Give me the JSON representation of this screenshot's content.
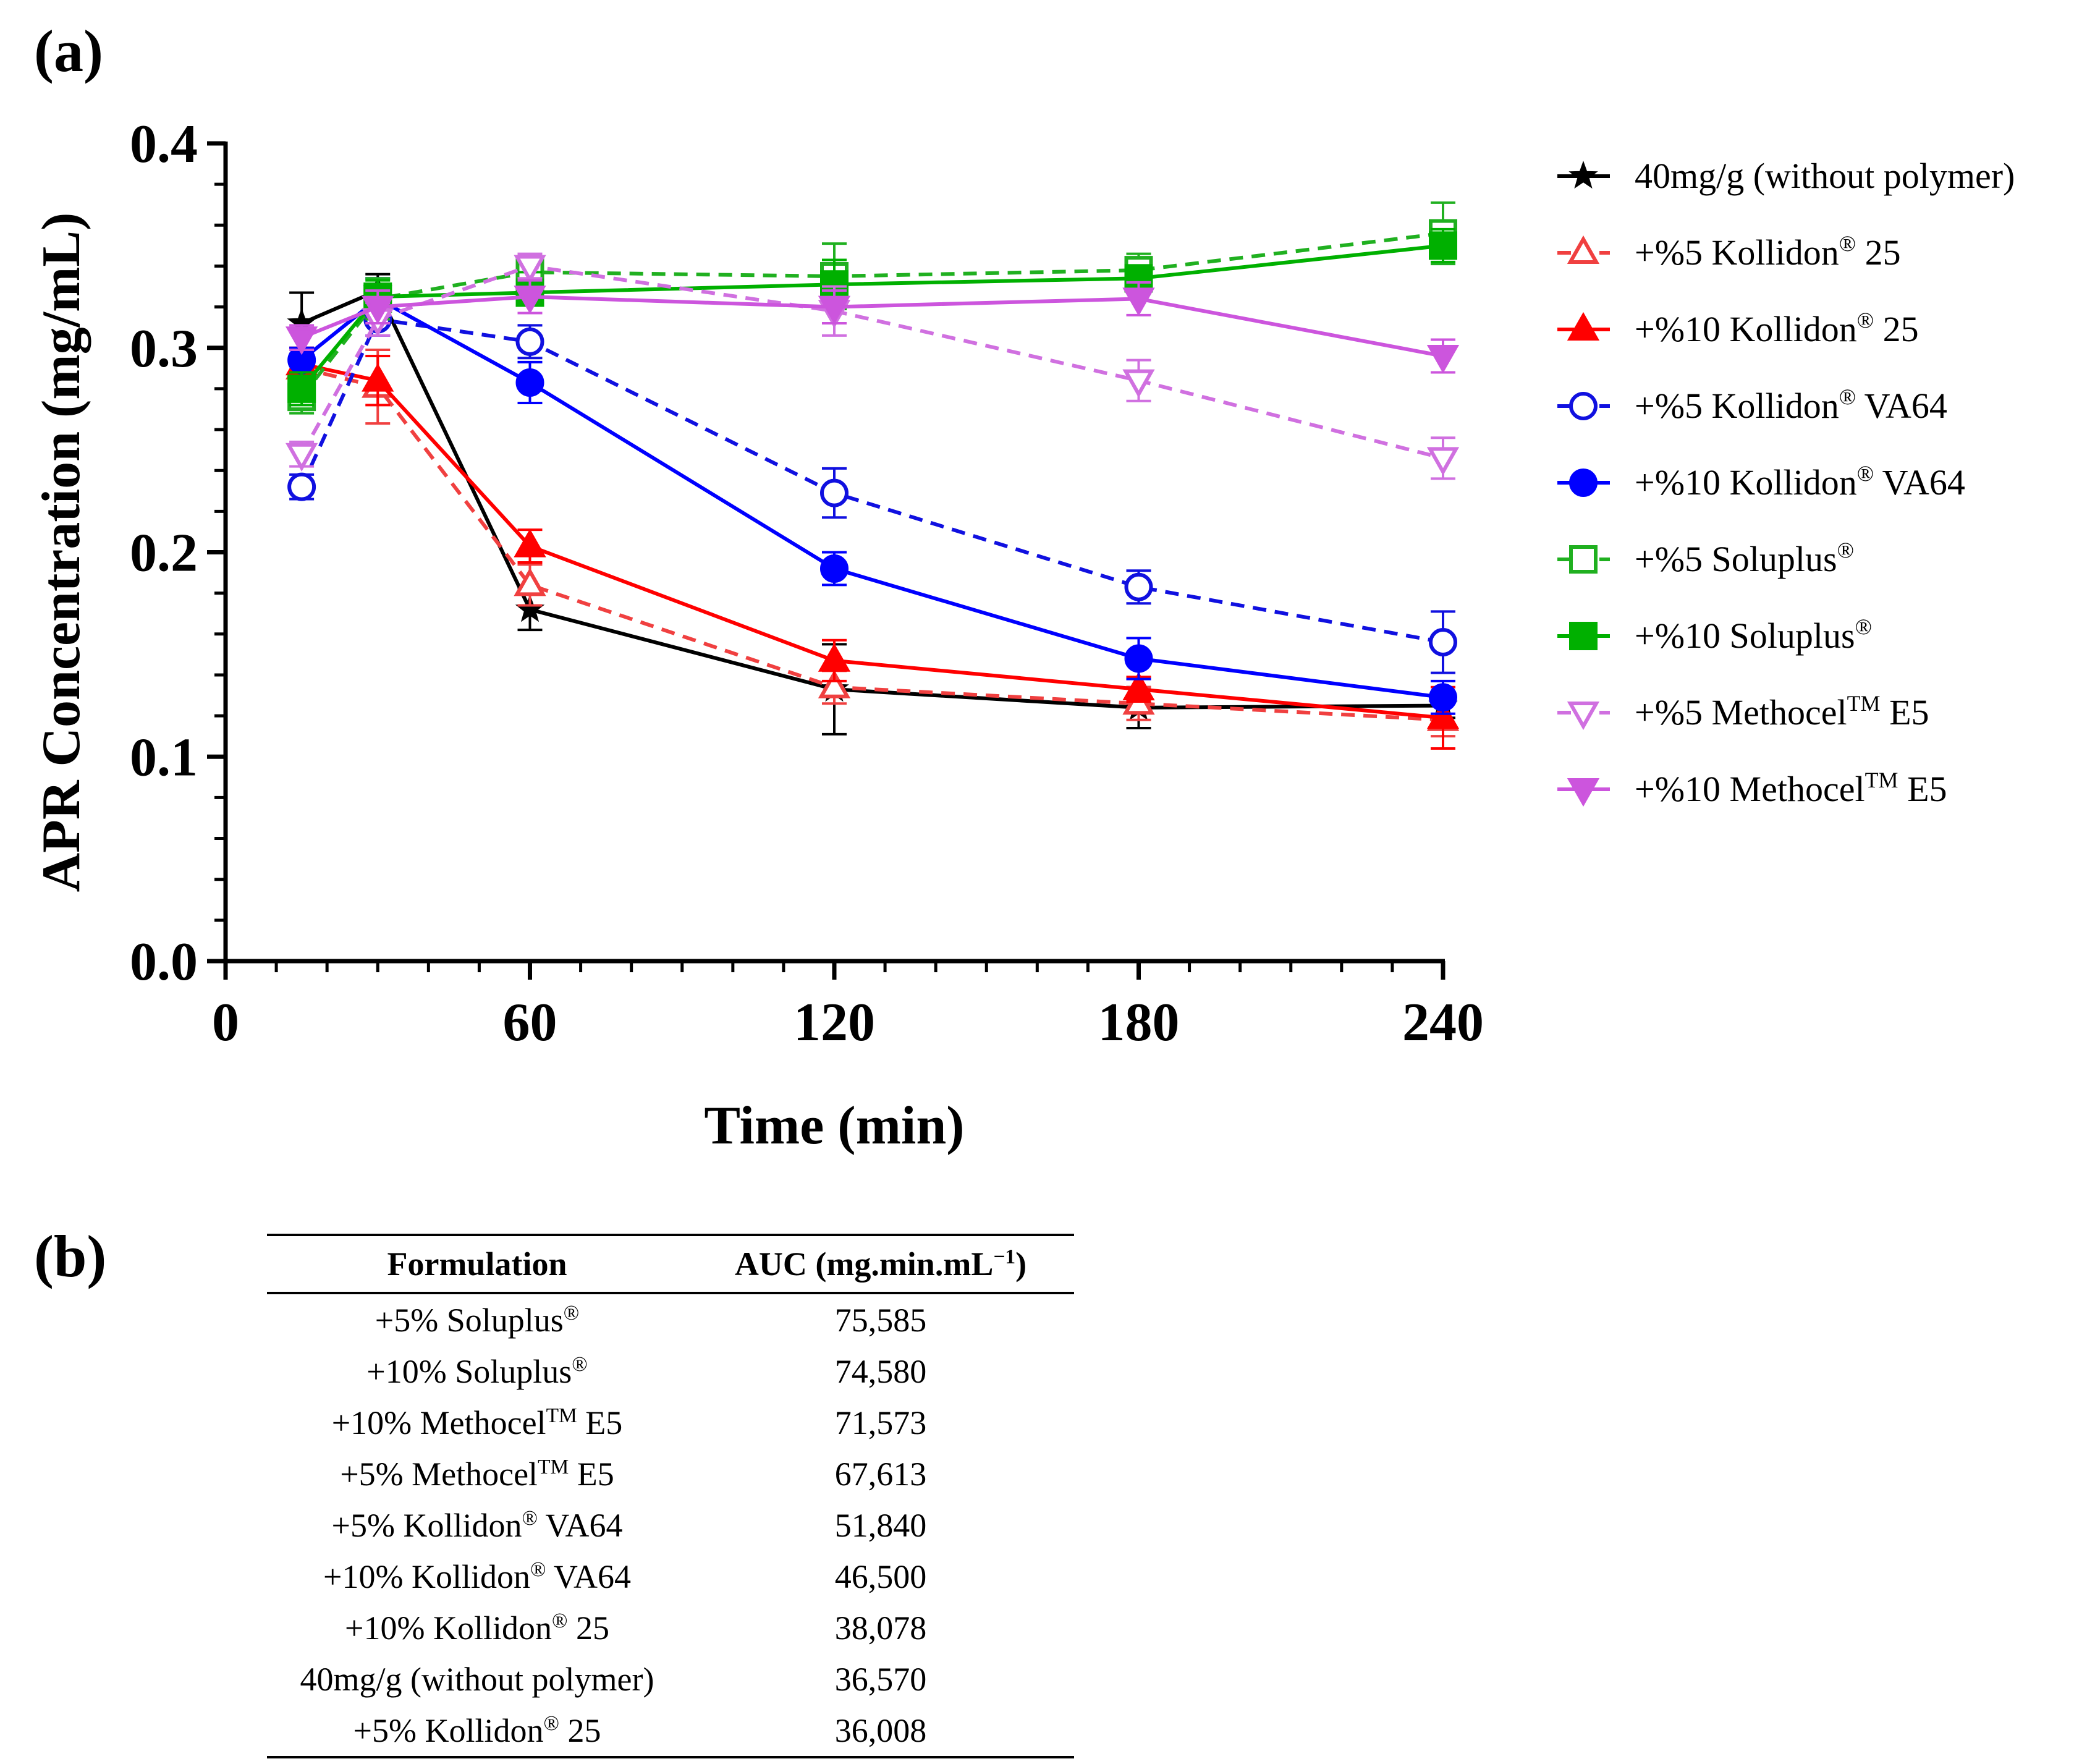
{
  "panel_a_label": "(a)",
  "panel_b_label": "(b)",
  "chart_data": {
    "type": "line",
    "xlabel": "Time (min)",
    "ylabel": "APR Concentration (mg/mL)",
    "xlim": [
      0,
      240
    ],
    "ylim": [
      0.0,
      0.4
    ],
    "xticks": [
      0,
      60,
      120,
      180,
      240
    ],
    "xtick_labels": [
      "0",
      "60",
      "120",
      "180",
      "240"
    ],
    "yticks": [
      0.0,
      0.1,
      0.2,
      0.3,
      0.4
    ],
    "ytick_labels": [
      "0.0",
      "0.1",
      "0.2",
      "0.3",
      "0.4"
    ],
    "legend_position": "right",
    "x": [
      15,
      30,
      60,
      120,
      180,
      240
    ],
    "series": [
      {
        "name": "40mg/g (without polymer)",
        "label_main": "40mg/g (without polymer)",
        "label_sup": "",
        "label_tail": "",
        "color": "#000000",
        "dashed": false,
        "marker": "star",
        "filled": true,
        "values": [
          0.312,
          0.328,
          0.172,
          0.133,
          0.124,
          0.125
        ],
        "errors": [
          0.015,
          0.008,
          0.01,
          0.022,
          0.01,
          0.006
        ]
      },
      {
        "name": "+%5 Kollidon® 25",
        "label_main": "+%5 Kollidon",
        "label_sup": "®",
        "label_tail": " 25",
        "color": "#f04040",
        "dashed": true,
        "marker": "triangle-up",
        "filled": false,
        "values": [
          0.29,
          0.281,
          0.184,
          0.134,
          0.126,
          0.118
        ],
        "errors": [
          0.01,
          0.018,
          0.01,
          0.008,
          0.008,
          0.008
        ]
      },
      {
        "name": "+%10 Kollidon® 25",
        "label_main": "+%10 Kollidon",
        "label_sup": "®",
        "label_tail": " 25",
        "color": "#ff0000",
        "dashed": false,
        "marker": "triangle-up",
        "filled": true,
        "values": [
          0.292,
          0.284,
          0.203,
          0.147,
          0.133,
          0.119
        ],
        "errors": [
          0.008,
          0.012,
          0.008,
          0.01,
          0.006,
          0.015
        ]
      },
      {
        "name": "+%5 Kollidon® VA64",
        "label_main": "+%5 Kollidon",
        "label_sup": "®",
        "label_tail": " VA64",
        "color": "#1010e0",
        "dashed": true,
        "marker": "circle",
        "filled": false,
        "values": [
          0.232,
          0.314,
          0.303,
          0.229,
          0.183,
          0.156
        ],
        "errors": [
          0.006,
          0.008,
          0.008,
          0.012,
          0.008,
          0.015
        ]
      },
      {
        "name": "+%10 Kollidon® VA64",
        "label_main": "+%10 Kollidon",
        "label_sup": "®",
        "label_tail": " VA64",
        "color": "#0000ff",
        "dashed": false,
        "marker": "circle",
        "filled": true,
        "values": [
          0.294,
          0.324,
          0.283,
          0.192,
          0.148,
          0.129
        ],
        "errors": [
          0.006,
          0.01,
          0.01,
          0.008,
          0.01,
          0.008
        ]
      },
      {
        "name": "+%5 Soluplus®",
        "label_main": "+%5 Soluplus",
        "label_sup": "®",
        "label_tail": "",
        "color": "#20b020",
        "dashed": true,
        "marker": "square",
        "filled": false,
        "values": [
          0.276,
          0.324,
          0.337,
          0.335,
          0.338,
          0.356
        ],
        "errors": [
          0.008,
          0.01,
          0.008,
          0.016,
          0.008,
          0.015
        ]
      },
      {
        "name": "+%10 Soluplus®",
        "label_main": "+%10 Soluplus",
        "label_sup": "®",
        "label_tail": "",
        "color": "#00b000",
        "dashed": false,
        "marker": "square",
        "filled": true,
        "values": [
          0.28,
          0.325,
          0.327,
          0.331,
          0.334,
          0.35
        ],
        "errors": [
          0.008,
          0.008,
          0.01,
          0.012,
          0.006,
          0.008
        ]
      },
      {
        "name": "+%5 Methocel™ E5",
        "label_main": "+%5 Methocel",
        "label_sup": "TM",
        "label_tail": " E5",
        "color": "#d070e0",
        "dashed": true,
        "marker": "triangle-down",
        "filled": false,
        "values": [
          0.248,
          0.314,
          0.34,
          0.318,
          0.284,
          0.246
        ],
        "errors": [
          0.006,
          0.008,
          0.006,
          0.012,
          0.01,
          0.01
        ]
      },
      {
        "name": "+%10 Methocel™ E5",
        "label_main": "+%10 Methocel",
        "label_sup": "TM",
        "label_tail": " E5",
        "color": "#cc55dd",
        "dashed": false,
        "marker": "triangle-down",
        "filled": true,
        "values": [
          0.305,
          0.32,
          0.325,
          0.32,
          0.324,
          0.296
        ],
        "errors": [
          0.006,
          0.008,
          0.008,
          0.008,
          0.008,
          0.008
        ]
      }
    ]
  },
  "table": {
    "headers": {
      "formulation": "Formulation",
      "auc_main": "AUC (mg.min.mL",
      "auc_sup": "−1",
      "auc_tail": ")"
    },
    "rows": [
      {
        "main": "+5% Soluplus",
        "sup": "®",
        "tail": "",
        "auc": "75,585"
      },
      {
        "main": "+10% Soluplus",
        "sup": "®",
        "tail": "",
        "auc": "74,580"
      },
      {
        "main": "+10% Methocel",
        "sup": "TM",
        "tail": " E5",
        "auc": "71,573"
      },
      {
        "main": "+5% Methocel",
        "sup": "TM",
        "tail": " E5",
        "auc": "67,613"
      },
      {
        "main": "+5% Kollidon",
        "sup": "®",
        "tail": " VA64",
        "auc": "51,840"
      },
      {
        "main": "+10% Kollidon",
        "sup": "®",
        "tail": " VA64",
        "auc": "46,500"
      },
      {
        "main": "+10% Kollidon",
        "sup": "®",
        "tail": " 25",
        "auc": "38,078"
      },
      {
        "main": "40mg/g (without polymer)",
        "sup": "",
        "tail": "",
        "auc": "36,570"
      },
      {
        "main": "+5% Kollidon",
        "sup": "®",
        "tail": " 25",
        "auc": "36,008"
      }
    ]
  }
}
